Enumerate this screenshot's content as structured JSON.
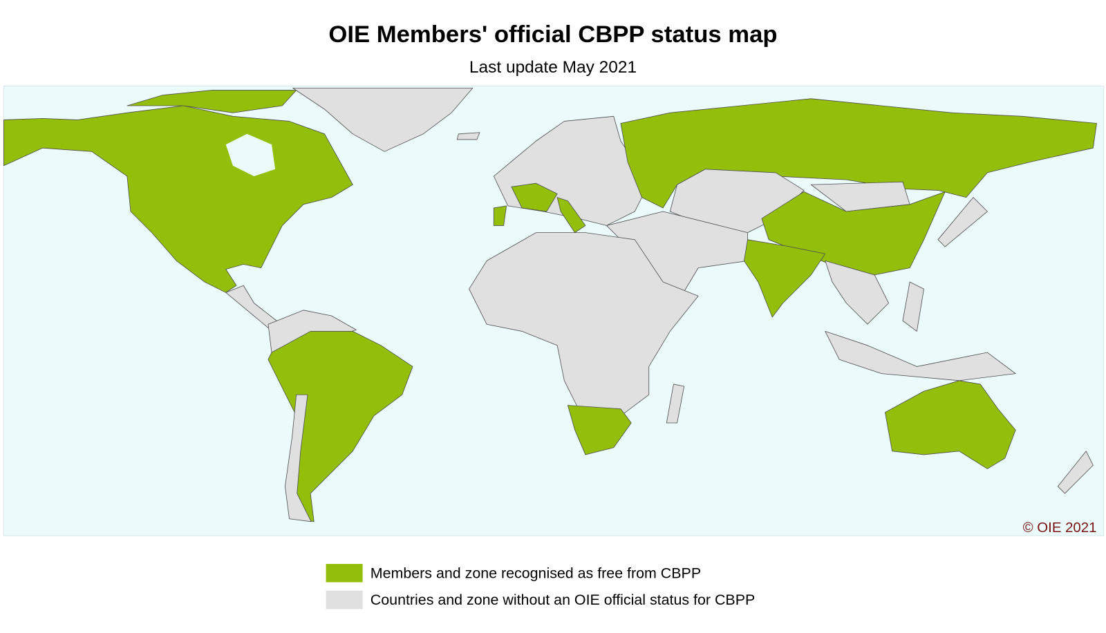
{
  "header": {
    "title": "OIE Members' official CBPP status map",
    "subtitle": "Last update May 2021"
  },
  "map": {
    "copyright": "© OIE 2021",
    "ocean_color": "#ebfafb",
    "border_color": "#4d4d4d"
  },
  "legend": [
    {
      "label": "Members and zone recognised as free from CBPP",
      "color": "#93bf0b"
    },
    {
      "label": "Countries and zone without an OIE official status for CBPP",
      "color": "#e0e0e0"
    }
  ]
}
